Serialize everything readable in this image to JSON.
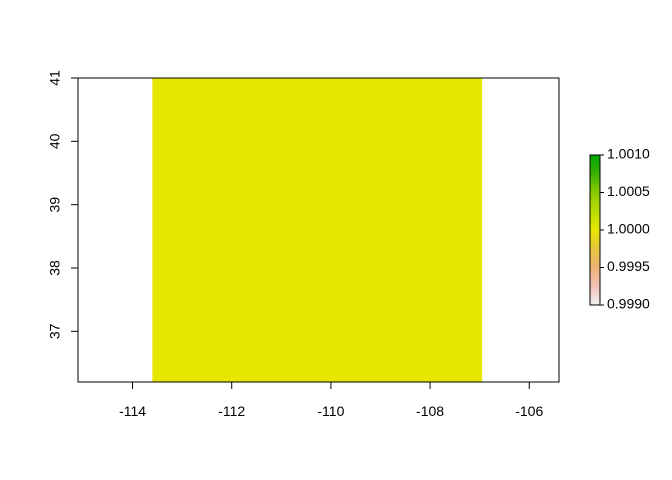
{
  "chart_data": {
    "type": "heatmap",
    "title": "",
    "xlabel": "",
    "ylabel": "",
    "xlim": [
      -115.1,
      -105.4
    ],
    "ylim": [
      36.2,
      41.0
    ],
    "x_ticks": [
      -114,
      -112,
      -110,
      -108,
      -106
    ],
    "x_tick_labels": [
      "-114",
      "-112",
      "-110",
      "-108",
      "-106"
    ],
    "y_ticks": [
      37,
      38,
      39,
      40,
      41
    ],
    "y_tick_labels": [
      "37",
      "38",
      "39",
      "40",
      "41"
    ],
    "cells": [
      {
        "xmin": -113.6,
        "xmax": -106.95,
        "ymin": 36.2,
        "ymax": 41.0,
        "value": 1.0
      }
    ],
    "colorbar": {
      "min": 0.999,
      "max": 1.001,
      "ticks": [
        0.999,
        0.9995,
        1.0,
        1.0005,
        1.001
      ],
      "tick_labels": [
        "0.9990",
        "0.9995",
        "1.0000",
        "1.0005",
        "1.0010"
      ],
      "colors": [
        "#f2f2f2",
        "#f1c2b8",
        "#ecb176",
        "#e6c73f",
        "#e6e600",
        "#b9dd00",
        "#8bcb00",
        "#3bb200",
        "#00a600"
      ]
    },
    "colors": {
      "cell": "#e6e600",
      "axis": "#000000",
      "background": "#ffffff"
    },
    "grid": false,
    "legend_position": "right"
  }
}
